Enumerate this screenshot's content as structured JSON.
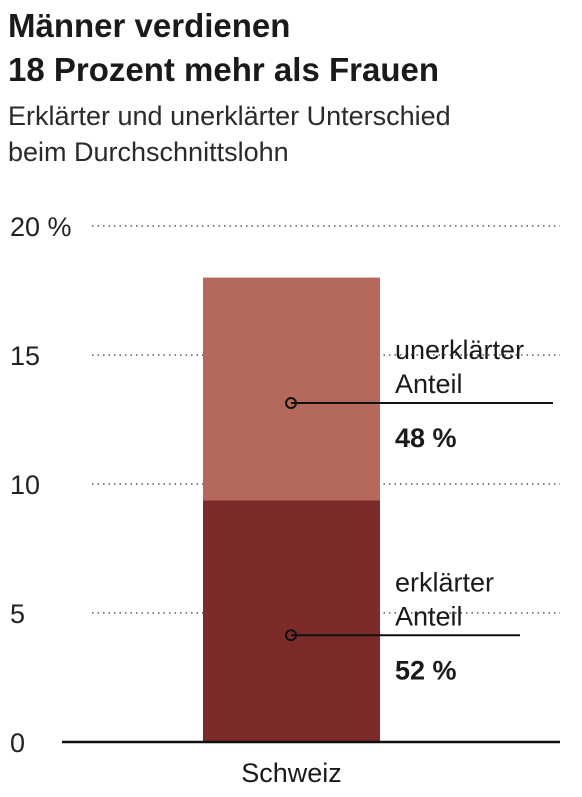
{
  "title_lines": [
    "Männer verdienen",
    "18 Prozent mehr als Frauen"
  ],
  "subtitle_lines": [
    "Erklärter und unerklärter Unterschied",
    "beim Durchschnittslohn"
  ],
  "colors": {
    "explained": "#7d2a2a",
    "unexplained": "#b5695d",
    "text": "#1a1a1a",
    "gridline": "#555555"
  },
  "chart_data": {
    "type": "bar",
    "stacked": true,
    "categories": [
      "Schweiz"
    ],
    "series": [
      {
        "name": "erklärter Anteil",
        "values": [
          9.36
        ],
        "share_label": "52 %",
        "label_lines": [
          "erklärter",
          "Anteil"
        ],
        "color": "#7d2a2a"
      },
      {
        "name": "unerklärter Anteil",
        "values": [
          8.64
        ],
        "share_label": "48 %",
        "label_lines": [
          "unerklärter",
          "Anteil"
        ],
        "color": "#b5695d"
      }
    ],
    "total": 18,
    "ylim": [
      0,
      20
    ],
    "yticks": [
      0,
      5,
      10,
      15,
      20
    ],
    "ytick_labels": [
      "0",
      "5",
      "10",
      "15",
      "20 %"
    ],
    "grid": true,
    "grid_style": "dotted"
  }
}
